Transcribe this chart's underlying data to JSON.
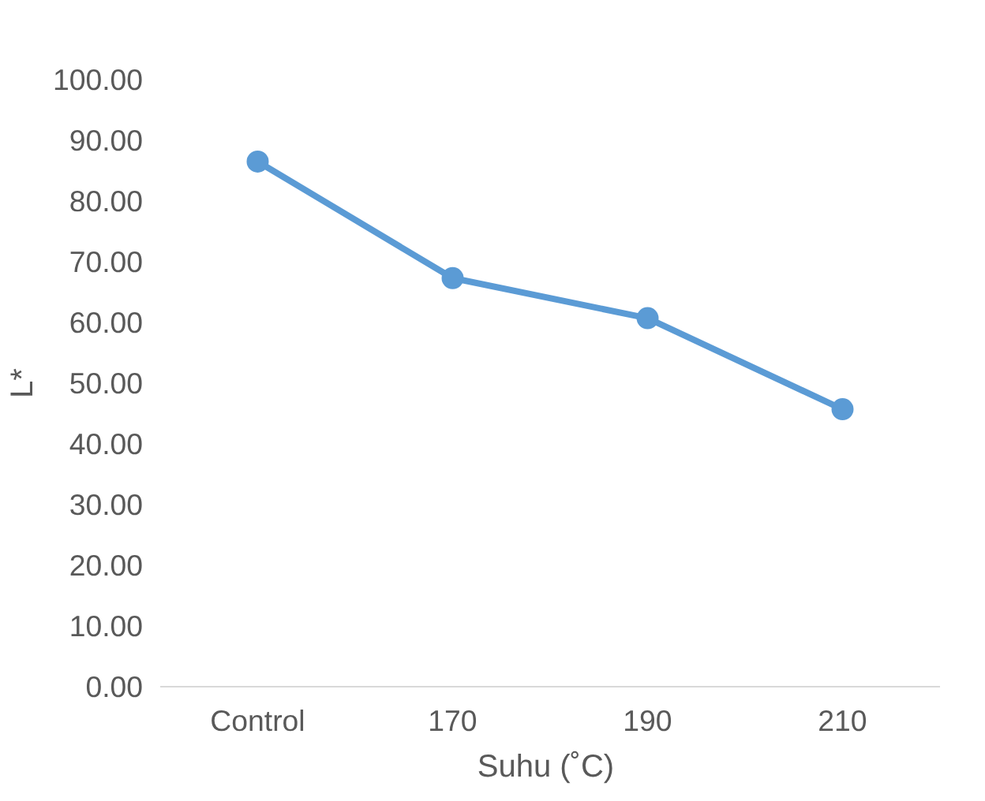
{
  "chart_data": {
    "type": "line",
    "xlabel": "Suhu  (˚C)",
    "ylabel": "L*",
    "categories": [
      "Control",
      "170",
      "190",
      "210"
    ],
    "series": [
      {
        "color": "#5b9bd5",
        "values": [
          86.5,
          67.3,
          60.7,
          45.7
        ]
      }
    ],
    "ylim": [
      0,
      100
    ],
    "yticks": [
      {
        "value": 0,
        "label": "0.00"
      },
      {
        "value": 10,
        "label": "10.00"
      },
      {
        "value": 20,
        "label": "20.00"
      },
      {
        "value": 30,
        "label": "30.00"
      },
      {
        "value": 40,
        "label": "40.00"
      },
      {
        "value": 50,
        "label": "50.00"
      },
      {
        "value": 60,
        "label": "60.00"
      },
      {
        "value": 70,
        "label": "70.00"
      },
      {
        "value": 80,
        "label": "80.00"
      },
      {
        "value": 90,
        "label": "90.00"
      },
      {
        "value": 100,
        "label": "100.00"
      }
    ],
    "grid": false,
    "marker": "circle"
  }
}
